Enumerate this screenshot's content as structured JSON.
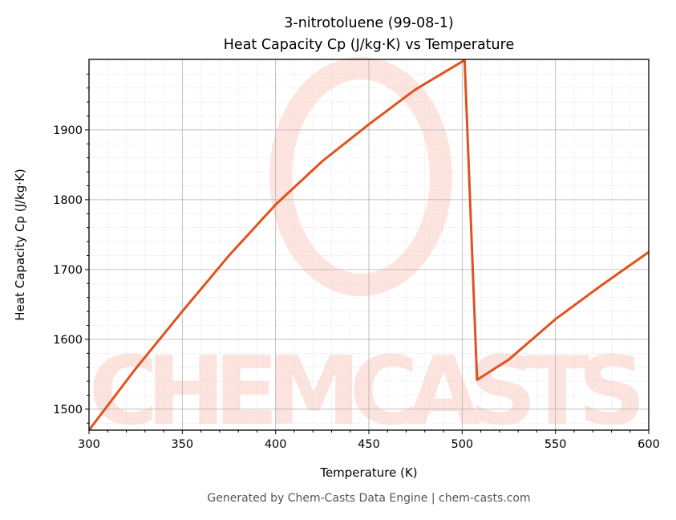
{
  "chart_data": {
    "type": "line",
    "title": "3-nitrotoluene (99-08-1)",
    "subtitle": "Heat Capacity Cp (J/kg·K) vs Temperature",
    "xlabel": "Temperature (K)",
    "ylabel": "Heat Capacity Cp (J/kg·K)",
    "xlim": [
      300,
      600
    ],
    "ylim": [
      1470,
      2001
    ],
    "xticks": [
      300,
      350,
      400,
      450,
      500,
      550,
      600
    ],
    "yticks": [
      1500,
      1600,
      1700,
      1800,
      1900
    ],
    "grid": true,
    "series": [
      {
        "name": "Cp",
        "color": "#e0521f",
        "x": [
          300,
          325,
          350,
          375,
          400,
          425,
          450,
          475,
          501.3,
          508,
          525,
          550,
          575,
          600
        ],
        "y": [
          1470,
          1558,
          1640,
          1720,
          1793,
          1855,
          1908,
          1958,
          2000,
          1542,
          1571,
          1629,
          1678,
          1725
        ]
      }
    ],
    "watermark": "CHEMCASTS"
  },
  "footer": "Generated by Chem-Casts Data Engine | chem-casts.com"
}
